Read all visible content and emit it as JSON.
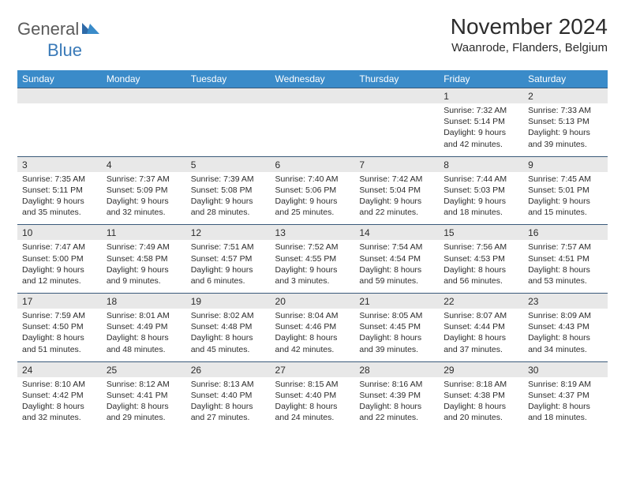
{
  "logo": {
    "text1": "General",
    "text2": "Blue"
  },
  "title": "November 2024",
  "location": "Waanrode, Flanders, Belgium",
  "colors": {
    "header_bg": "#3a8bc9",
    "header_text": "#ffffff",
    "daynum_bg": "#e8e8e8",
    "border": "#3a5a7a",
    "text": "#2c2c2c",
    "logo_gray": "#5a5a5a",
    "logo_blue": "#3a7ab8"
  },
  "day_headers": [
    "Sunday",
    "Monday",
    "Tuesday",
    "Wednesday",
    "Thursday",
    "Friday",
    "Saturday"
  ],
  "weeks": [
    {
      "nums": [
        "",
        "",
        "",
        "",
        "",
        "1",
        "2"
      ],
      "cells": [
        null,
        null,
        null,
        null,
        null,
        {
          "sunrise": "7:32 AM",
          "sunset": "5:14 PM",
          "daylight": "9 hours and 42 minutes."
        },
        {
          "sunrise": "7:33 AM",
          "sunset": "5:13 PM",
          "daylight": "9 hours and 39 minutes."
        }
      ]
    },
    {
      "nums": [
        "3",
        "4",
        "5",
        "6",
        "7",
        "8",
        "9"
      ],
      "cells": [
        {
          "sunrise": "7:35 AM",
          "sunset": "5:11 PM",
          "daylight": "9 hours and 35 minutes."
        },
        {
          "sunrise": "7:37 AM",
          "sunset": "5:09 PM",
          "daylight": "9 hours and 32 minutes."
        },
        {
          "sunrise": "7:39 AM",
          "sunset": "5:08 PM",
          "daylight": "9 hours and 28 minutes."
        },
        {
          "sunrise": "7:40 AM",
          "sunset": "5:06 PM",
          "daylight": "9 hours and 25 minutes."
        },
        {
          "sunrise": "7:42 AM",
          "sunset": "5:04 PM",
          "daylight": "9 hours and 22 minutes."
        },
        {
          "sunrise": "7:44 AM",
          "sunset": "5:03 PM",
          "daylight": "9 hours and 18 minutes."
        },
        {
          "sunrise": "7:45 AM",
          "sunset": "5:01 PM",
          "daylight": "9 hours and 15 minutes."
        }
      ]
    },
    {
      "nums": [
        "10",
        "11",
        "12",
        "13",
        "14",
        "15",
        "16"
      ],
      "cells": [
        {
          "sunrise": "7:47 AM",
          "sunset": "5:00 PM",
          "daylight": "9 hours and 12 minutes."
        },
        {
          "sunrise": "7:49 AM",
          "sunset": "4:58 PM",
          "daylight": "9 hours and 9 minutes."
        },
        {
          "sunrise": "7:51 AM",
          "sunset": "4:57 PM",
          "daylight": "9 hours and 6 minutes."
        },
        {
          "sunrise": "7:52 AM",
          "sunset": "4:55 PM",
          "daylight": "9 hours and 3 minutes."
        },
        {
          "sunrise": "7:54 AM",
          "sunset": "4:54 PM",
          "daylight": "8 hours and 59 minutes."
        },
        {
          "sunrise": "7:56 AM",
          "sunset": "4:53 PM",
          "daylight": "8 hours and 56 minutes."
        },
        {
          "sunrise": "7:57 AM",
          "sunset": "4:51 PM",
          "daylight": "8 hours and 53 minutes."
        }
      ]
    },
    {
      "nums": [
        "17",
        "18",
        "19",
        "20",
        "21",
        "22",
        "23"
      ],
      "cells": [
        {
          "sunrise": "7:59 AM",
          "sunset": "4:50 PM",
          "daylight": "8 hours and 51 minutes."
        },
        {
          "sunrise": "8:01 AM",
          "sunset": "4:49 PM",
          "daylight": "8 hours and 48 minutes."
        },
        {
          "sunrise": "8:02 AM",
          "sunset": "4:48 PM",
          "daylight": "8 hours and 45 minutes."
        },
        {
          "sunrise": "8:04 AM",
          "sunset": "4:46 PM",
          "daylight": "8 hours and 42 minutes."
        },
        {
          "sunrise": "8:05 AM",
          "sunset": "4:45 PM",
          "daylight": "8 hours and 39 minutes."
        },
        {
          "sunrise": "8:07 AM",
          "sunset": "4:44 PM",
          "daylight": "8 hours and 37 minutes."
        },
        {
          "sunrise": "8:09 AM",
          "sunset": "4:43 PM",
          "daylight": "8 hours and 34 minutes."
        }
      ]
    },
    {
      "nums": [
        "24",
        "25",
        "26",
        "27",
        "28",
        "29",
        "30"
      ],
      "cells": [
        {
          "sunrise": "8:10 AM",
          "sunset": "4:42 PM",
          "daylight": "8 hours and 32 minutes."
        },
        {
          "sunrise": "8:12 AM",
          "sunset": "4:41 PM",
          "daylight": "8 hours and 29 minutes."
        },
        {
          "sunrise": "8:13 AM",
          "sunset": "4:40 PM",
          "daylight": "8 hours and 27 minutes."
        },
        {
          "sunrise": "8:15 AM",
          "sunset": "4:40 PM",
          "daylight": "8 hours and 24 minutes."
        },
        {
          "sunrise": "8:16 AM",
          "sunset": "4:39 PM",
          "daylight": "8 hours and 22 minutes."
        },
        {
          "sunrise": "8:18 AM",
          "sunset": "4:38 PM",
          "daylight": "8 hours and 20 minutes."
        },
        {
          "sunrise": "8:19 AM",
          "sunset": "4:37 PM",
          "daylight": "8 hours and 18 minutes."
        }
      ]
    }
  ],
  "labels": {
    "sunrise": "Sunrise: ",
    "sunset": "Sunset: ",
    "daylight": "Daylight: "
  }
}
